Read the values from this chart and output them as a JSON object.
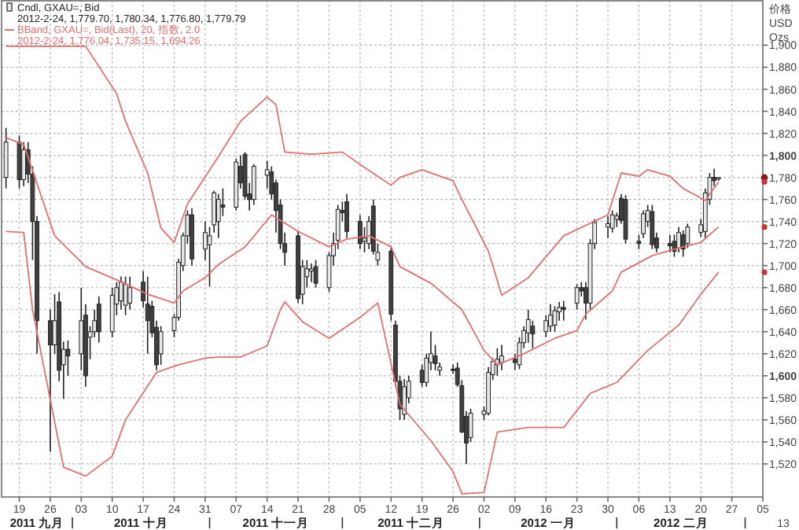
{
  "chart_data": {
    "type": "candlestick",
    "ylabel": "价格 USD Ozs",
    "grid": true,
    "legend": "top left",
    "xlim": [
      "2011-09-15",
      "2012-03-05"
    ],
    "xticks": [
      {
        "value": "2011-09-19",
        "label": "19"
      },
      {
        "value": "2011-09-26",
        "label": "26"
      },
      {
        "value": "2011-10-03",
        "label": "03"
      },
      {
        "value": "2011-10-10",
        "label": "10"
      },
      {
        "value": "2011-10-17",
        "label": "17"
      },
      {
        "value": "2011-10-24",
        "label": "24"
      },
      {
        "value": "2011-10-31",
        "label": "31"
      },
      {
        "value": "2011-11-07",
        "label": "07"
      },
      {
        "value": "2011-11-14",
        "label": "14"
      },
      {
        "value": "2011-11-21",
        "label": "21"
      },
      {
        "value": "2011-11-28",
        "label": "28"
      },
      {
        "value": "2011-12-05",
        "label": "05"
      },
      {
        "value": "2011-12-12",
        "label": "12"
      },
      {
        "value": "2011-12-19",
        "label": "19"
      },
      {
        "value": "2011-12-26",
        "label": "26"
      },
      {
        "value": "2012-01-02",
        "label": "02"
      },
      {
        "value": "2012-01-09",
        "label": "09"
      },
      {
        "value": "2012-01-16",
        "label": "16"
      },
      {
        "value": "2012-01-23",
        "label": "23"
      },
      {
        "value": "2012-01-30",
        "label": "30"
      },
      {
        "value": "2012-02-06",
        "label": "06"
      },
      {
        "value": "2012-02-13",
        "label": "13"
      },
      {
        "value": "2012-02-20",
        "label": "20"
      },
      {
        "value": "2012-02-27",
        "label": "27"
      },
      {
        "value": "2012-03-05",
        "label": "05"
      }
    ],
    "ylim": [
      1490,
      1941
    ],
    "yticks": [
      {
        "value": 1520,
        "label": "1,520"
      },
      {
        "value": 1540,
        "label": "1,540"
      },
      {
        "value": 1560,
        "label": "1,560"
      },
      {
        "value": 1580,
        "label": "1,580"
      },
      {
        "value": 1600,
        "label": "1,600"
      },
      {
        "value": 1620,
        "label": "1,620"
      },
      {
        "value": 1640,
        "label": "1,640"
      },
      {
        "value": 1660,
        "label": "1,660"
      },
      {
        "value": 1680,
        "label": "1,680"
      },
      {
        "value": 1700,
        "label": "1,700"
      },
      {
        "value": 1720,
        "label": "1,720"
      },
      {
        "value": 1740,
        "label": "1,740"
      },
      {
        "value": 1760,
        "label": "1,760"
      },
      {
        "value": 1780,
        "label": "1,780"
      },
      {
        "value": 1800,
        "label": "1,800"
      },
      {
        "value": 1820,
        "label": "1,820"
      },
      {
        "value": 1840,
        "label": "1,840"
      },
      {
        "value": 1860,
        "label": "1,860"
      },
      {
        "value": 1880,
        "label": "1,880"
      },
      {
        "value": 1900,
        "label": "1,900"
      }
    ],
    "annotations": [
      "2012-2-24, 1,779.70, 1,780.34, 1,776.80, 1,779.79",
      "2012-2-24, 1,776.04, 1,735.15, 1,694.26",
      "13",
      "2011 九月",
      "2011 十月",
      "2011 十一月",
      "2011 十二月",
      "2012 一月",
      "2012 二月"
    ],
    "series": [
      {
        "name": "Cndl, GXAU=, Bid",
        "colors": [
          "#e8e8e8",
          "#404040",
          "#e8e8e8",
          "#404040",
          "#404040",
          "#404040",
          "#404040",
          "#e8e8e8",
          "#404040",
          "#e8e8e8",
          "#404040",
          "#e8e8e8",
          "#404040",
          "#e8e8e8",
          "#e8e8e8",
          "#404040",
          "#e8e8e8",
          "#e8e8e8",
          "#e8e8e8",
          "#e8e8e8",
          "#e8e8e8",
          "#404040",
          "#404040",
          "#404040",
          "#404040",
          "#e8e8e8",
          "#e8e8e8",
          "#e8e8e8",
          "#e8e8e8",
          "#e8e8e8",
          "#404040",
          "#e8e8e8",
          "#e8e8e8",
          "#e8e8e8",
          "#e8e8e8",
          "#404040",
          "#e8e8e8",
          "#404040",
          "#404040",
          "#404040",
          "#e8e8e8",
          "#e8e8e8",
          "#404040",
          "#404040",
          "#404040",
          "#404040",
          "#404040",
          "#e8e8e8",
          "#e8e8e8",
          "#e8e8e8",
          "#404040",
          "#e8e8e8",
          "#e8e8e8",
          "#e8e8e8",
          "#404040",
          "#404040",
          "#404040",
          "#e8e8e8",
          "#e8e8e8",
          "#404040",
          "#e8e8e8",
          "#404040",
          "#404040",
          "#404040",
          "#e8e8e8",
          "#e8e8e8",
          "#404040",
          "#e8e8e8",
          "#e8e8e8",
          "#404040",
          "#e8e8e8",
          "#404040",
          "#404040",
          "#404040",
          "#404040",
          "#e8e8e8",
          "#e8e8e8",
          "#e8e8e8",
          "#e8e8e8",
          "#e8e8e8",
          "#e8e8e8",
          "#404040",
          "#e8e8e8",
          "#e8e8e8",
          "#e8e8e8",
          "#404040",
          "#e8e8e8",
          "#e8e8e8",
          "#e8e8e8",
          "#e8e8e8",
          "#404040",
          "#e8e8e8",
          "#404040",
          "#404040",
          "#e8e8e8",
          "#e8e8e8",
          "#e8e8e8",
          "#e8e8e8",
          "#e8e8e8",
          "#404040",
          "#404040",
          "#404040",
          "#e8e8e8",
          "#e8e8e8",
          "#404040",
          "#404040",
          "#404040",
          "#404040",
          "#e8e8e8",
          "#404040",
          "#e8e8e8",
          "#e8e8e8",
          "#e8e8e8",
          "#e8e8e8",
          "#404040",
          "#e8e8e8"
        ],
        "x": [
          "2011-09-16",
          "2011-09-19",
          "2011-09-20",
          "2011-09-21",
          "2011-09-22",
          "2011-09-23",
          "2011-09-26",
          "2011-09-27",
          "2011-09-28",
          "2011-09-29",
          "2011-09-30",
          "2011-10-03",
          "2011-10-04",
          "2011-10-05",
          "2011-10-06",
          "2011-10-07",
          "2011-10-10",
          "2011-10-11",
          "2011-10-12",
          "2011-10-13",
          "2011-10-14",
          "2011-10-17",
          "2011-10-18",
          "2011-10-19",
          "2011-10-20",
          "2011-10-21",
          "2011-10-24",
          "2011-10-25",
          "2011-10-26",
          "2011-10-27",
          "2011-10-28",
          "2011-10-31",
          "2011-11-01",
          "2011-11-02",
          "2011-11-03",
          "2011-11-04",
          "2011-11-07",
          "2011-11-08",
          "2011-11-09",
          "2011-11-10",
          "2011-11-11",
          "2011-11-14",
          "2011-11-15",
          "2011-11-16",
          "2011-11-17",
          "2011-11-18",
          "2011-11-21",
          "2011-11-22",
          "2011-11-23",
          "2011-11-24",
          "2011-11-25",
          "2011-11-28",
          "2011-11-29",
          "2011-11-30",
          "2011-12-01",
          "2011-12-02",
          "2011-12-05",
          "2011-12-06",
          "2011-12-07",
          "2011-12-08",
          "2011-12-09",
          "2011-12-12",
          "2011-12-13",
          "2011-12-14",
          "2011-12-15",
          "2011-12-16",
          "2011-12-19",
          "2011-12-20",
          "2011-12-21",
          "2011-12-22",
          "2011-12-23",
          "2011-12-26",
          "2011-12-27",
          "2011-12-28",
          "2011-12-29",
          "2011-12-30",
          "2012-01-02",
          "2012-01-03",
          "2012-01-04",
          "2012-01-05",
          "2012-01-06",
          "2012-01-09",
          "2012-01-10",
          "2012-01-11",
          "2012-01-12",
          "2012-01-13",
          "2012-01-16",
          "2012-01-17",
          "2012-01-18",
          "2012-01-19",
          "2012-01-20",
          "2012-01-23",
          "2012-01-24",
          "2012-01-25",
          "2012-01-26",
          "2012-01-27",
          "2012-01-30",
          "2012-01-31",
          "2012-02-01",
          "2012-02-02",
          "2012-02-03",
          "2012-02-06",
          "2012-02-07",
          "2012-02-08",
          "2012-02-09",
          "2012-02-10",
          "2012-02-13",
          "2012-02-14",
          "2012-02-15",
          "2012-02-16",
          "2012-02-17",
          "2012-02-20",
          "2012-02-21",
          "2012-02-22",
          "2012-02-23",
          "2012-02-24"
        ],
        "ohlc": [
          [
            1780,
            1825,
            1770,
            1812
          ],
          [
            1812,
            1818,
            1770,
            1778
          ],
          [
            1778,
            1812,
            1772,
            1805
          ],
          [
            1805,
            1812,
            1775,
            1783
          ],
          [
            1783,
            1790,
            1705,
            1740
          ],
          [
            1740,
            1745,
            1620,
            1650
          ],
          [
            1650,
            1660,
            1531,
            1628
          ],
          [
            1628,
            1674,
            1620,
            1650
          ],
          [
            1667,
            1676,
            1595,
            1605
          ],
          [
            1610,
            1631,
            1579,
            1624
          ],
          [
            1624,
            1632,
            1600,
            1618
          ],
          [
            1620,
            1680,
            1605,
            1650
          ],
          [
            1655,
            1665,
            1590,
            1600
          ],
          [
            1635,
            1645,
            1615,
            1640
          ],
          [
            1640,
            1660,
            1635,
            1650
          ],
          [
            1665,
            1672,
            1630,
            1640
          ],
          [
            1640,
            1680,
            1635,
            1673
          ],
          [
            1665,
            1685,
            1655,
            1680
          ],
          [
            1668,
            1690,
            1660,
            1685
          ],
          [
            1664,
            1690,
            1655,
            1683
          ],
          [
            1666,
            1690,
            1660,
            1680
          ],
          [
            1685,
            1695,
            1662,
            1668
          ],
          [
            1665,
            1690,
            1620,
            1650
          ],
          [
            1663,
            1668,
            1635,
            1639
          ],
          [
            1644,
            1650,
            1605,
            1610
          ],
          [
            1620,
            1645,
            1610,
            1640
          ],
          [
            1641,
            1656,
            1635,
            1653
          ],
          [
            1653,
            1706,
            1650,
            1703
          ],
          [
            1700,
            1730,
            1695,
            1727
          ],
          [
            1727,
            1750,
            1720,
            1746
          ],
          [
            1746,
            1752,
            1700,
            1706
          ],
          [
            1715,
            1740,
            1705,
            1730
          ],
          [
            1719,
            1735,
            1681,
            1727
          ],
          [
            1737,
            1768,
            1730,
            1766
          ],
          [
            1740,
            1765,
            1725,
            1760
          ],
          [
            1755,
            1770,
            1745,
            1753
          ],
          [
            1753,
            1797,
            1750,
            1794
          ],
          [
            1790,
            1800,
            1770,
            1775
          ],
          [
            1801,
            1803,
            1760,
            1763
          ],
          [
            1765,
            1775,
            1750,
            1760
          ],
          [
            1760,
            1792,
            1755,
            1790
          ],
          [
            1782,
            1795,
            1770,
            1787
          ],
          [
            1785,
            1790,
            1760,
            1765
          ],
          [
            1775,
            1778,
            1730,
            1750
          ],
          [
            1755,
            1760,
            1715,
            1720
          ],
          [
            1720,
            1730,
            1700,
            1712
          ],
          [
            1727,
            1732,
            1666,
            1670
          ],
          [
            1674,
            1705,
            1665,
            1699
          ],
          [
            1690,
            1705,
            1680,
            1697
          ],
          [
            1695,
            1702,
            1685,
            1697
          ],
          [
            1699,
            1705,
            1680,
            1684
          ],
          [
            1680,
            1712,
            1676,
            1709
          ],
          [
            1709,
            1730,
            1700,
            1720
          ],
          [
            1723,
            1755,
            1715,
            1751
          ],
          [
            1750,
            1758,
            1740,
            1748
          ],
          [
            1758,
            1765,
            1725,
            1731
          ],
          [
            1740,
            1746,
            1715,
            1720
          ],
          [
            1722,
            1735,
            1712,
            1725
          ],
          [
            1720,
            1745,
            1715,
            1740
          ],
          [
            1754,
            1760,
            1710,
            1713
          ],
          [
            1705,
            1720,
            1700,
            1712
          ],
          [
            1713,
            1718,
            1650,
            1656
          ],
          [
            1646,
            1650,
            1590,
            1595
          ],
          [
            1595,
            1600,
            1560,
            1570
          ],
          [
            1565,
            1597,
            1560,
            1590
          ],
          [
            1580,
            1600,
            1575,
            1595
          ],
          [
            1605,
            1610,
            1590,
            1594
          ],
          [
            1594,
            1620,
            1590,
            1616
          ],
          [
            1612,
            1640,
            1605,
            1620
          ],
          [
            1618,
            1628,
            1605,
            1611
          ],
          [
            1605,
            1612,
            1600,
            1608
          ],
          [
            1606,
            1610,
            1602,
            1605
          ],
          [
            1607,
            1612,
            1590,
            1592
          ],
          [
            1591,
            1596,
            1548,
            1549
          ],
          [
            1563,
            1568,
            1520,
            1539
          ],
          [
            1544,
            1570,
            1540,
            1566
          ],
          [
            1565,
            1572,
            1560,
            1568
          ],
          [
            1566,
            1608,
            1564,
            1603
          ],
          [
            1601,
            1616,
            1596,
            1613
          ],
          [
            1610,
            1625,
            1600,
            1615
          ],
          [
            1612,
            1628,
            1605,
            1618
          ],
          [
            1615,
            1620,
            1605,
            1612
          ],
          [
            1610,
            1635,
            1606,
            1630
          ],
          [
            1630,
            1645,
            1625,
            1641
          ],
          [
            1639,
            1660,
            1630,
            1651
          ],
          [
            1645,
            1650,
            1625,
            1638
          ],
          [
            1640,
            1655,
            1635,
            1650
          ],
          [
            1645,
            1665,
            1640,
            1655
          ],
          [
            1646,
            1663,
            1640,
            1659
          ],
          [
            1658,
            1667,
            1650,
            1662
          ],
          [
            1662,
            1668,
            1650,
            1660
          ],
          [
            1666,
            1683,
            1660,
            1680
          ],
          [
            1680,
            1685,
            1672,
            1677
          ],
          [
            1680,
            1685,
            1651,
            1666
          ],
          [
            1666,
            1724,
            1660,
            1720
          ],
          [
            1720,
            1742,
            1715,
            1739
          ],
          [
            1735,
            1745,
            1725,
            1738
          ],
          [
            1734,
            1750,
            1730,
            1746
          ],
          [
            1742,
            1748,
            1735,
            1745
          ],
          [
            1761,
            1765,
            1738,
            1741
          ],
          [
            1760,
            1764,
            1720,
            1724
          ],
          [
            1722,
            1728,
            1715,
            1720
          ],
          [
            1729,
            1750,
            1725,
            1747
          ],
          [
            1740,
            1755,
            1735,
            1750
          ],
          [
            1749,
            1755,
            1715,
            1719
          ],
          [
            1725,
            1730,
            1712,
            1716
          ],
          [
            1720,
            1728,
            1712,
            1718
          ],
          [
            1722,
            1728,
            1708,
            1713
          ],
          [
            1716,
            1735,
            1712,
            1730
          ],
          [
            1728,
            1732,
            1708,
            1715
          ],
          [
            1720,
            1738,
            1716,
            1735
          ],
          [
            1730,
            1742,
            1726,
            1737
          ],
          [
            1731,
            1770,
            1725,
            1766
          ],
          [
            1760,
            1784,
            1755,
            1780
          ],
          [
            1780,
            1788,
            1772,
            1777
          ],
          [
            1779.7,
            1780.34,
            1776.8,
            1779.79
          ]
        ]
      },
      {
        "name": "BBand, GXAU=, Bid(Last), 20, 指数, 2.0",
        "type": "line",
        "color": "#e07070",
        "x": [
          "2011-09-16",
          "2011-10-04",
          "2011-10-11",
          "2011-10-13",
          "2011-10-18",
          "2011-10-21",
          "2011-10-24",
          "2011-10-27",
          "2011-11-03",
          "2011-11-08",
          "2011-11-14",
          "2011-11-16",
          "2011-11-18",
          "2011-11-24",
          "2011-12-01",
          "2011-12-06",
          "2011-12-12",
          "2011-12-14",
          "2011-12-19",
          "2011-12-26",
          "2011-12-28",
          "2012-01-03",
          "2012-01-06",
          "2012-01-12",
          "2012-01-20",
          "2012-01-30",
          "2012-02-02",
          "2012-02-06",
          "2012-02-08",
          "2012-02-13",
          "2012-02-16",
          "2012-02-21",
          "2012-02-24"
        ],
        "values": [
          1899,
          1899,
          1856,
          1831,
          1784,
          1734,
          1721,
          1756,
          1799,
          1831,
          1853,
          1846,
          1803,
          1801,
          1803,
          1789,
          1773,
          1780,
          1787,
          1777,
          1760,
          1713,
          1673,
          1689,
          1727,
          1746,
          1784,
          1781,
          1787,
          1781,
          1770,
          1759,
          1776
        ]
      },
      {
        "type": "line",
        "color": "#e07070",
        "x": [
          "2011-09-16",
          "2011-09-20",
          "2011-09-27",
          "2011-10-04",
          "2011-10-11",
          "2011-10-18",
          "2011-10-24",
          "2011-10-26",
          "2011-10-31",
          "2011-11-03",
          "2011-11-09",
          "2011-11-15",
          "2011-11-21",
          "2011-11-28",
          "2011-12-02",
          "2011-12-07",
          "2011-12-12",
          "2011-12-14",
          "2011-12-21",
          "2011-12-28",
          "2012-01-02",
          "2012-01-05",
          "2012-01-11",
          "2012-01-18",
          "2012-01-23",
          "2012-01-25",
          "2012-01-31",
          "2012-02-02",
          "2012-02-09",
          "2012-02-15",
          "2012-02-20",
          "2012-02-24"
        ],
        "values": [
          1816,
          1810,
          1727,
          1699,
          1687,
          1674,
          1666,
          1677,
          1689,
          1701,
          1717,
          1746,
          1731,
          1717,
          1724,
          1727,
          1717,
          1699,
          1684,
          1660,
          1623,
          1610,
          1620,
          1634,
          1641,
          1656,
          1677,
          1694,
          1709,
          1716,
          1721,
          1735
        ]
      },
      {
        "type": "line",
        "color": "#e07070",
        "x": [
          "2011-09-16",
          "2011-09-20",
          "2011-09-22",
          "2011-09-29",
          "2011-10-04",
          "2011-10-10",
          "2011-10-13",
          "2011-10-20",
          "2011-10-25",
          "2011-10-31",
          "2011-11-03",
          "2011-11-08",
          "2011-11-14",
          "2011-11-17",
          "2011-11-18",
          "2011-11-22",
          "2011-11-28",
          "2011-12-05",
          "2011-12-09",
          "2011-12-14",
          "2011-12-21",
          "2011-12-26",
          "2011-12-28",
          "2012-01-02",
          "2012-01-05",
          "2012-01-12",
          "2012-01-20",
          "2012-01-26",
          "2012-02-01",
          "2012-02-08",
          "2012-02-15",
          "2012-02-20",
          "2012-02-24"
        ],
        "values": [
          1731,
          1730,
          1660,
          1517,
          1509,
          1527,
          1560,
          1603,
          1610,
          1616,
          1617,
          1617,
          1627,
          1660,
          1667,
          1649,
          1634,
          1653,
          1666,
          1574,
          1541,
          1513,
          1493,
          1494,
          1549,
          1553,
          1553,
          1584,
          1594,
          1623,
          1646,
          1674,
          1694
        ]
      }
    ]
  }
}
